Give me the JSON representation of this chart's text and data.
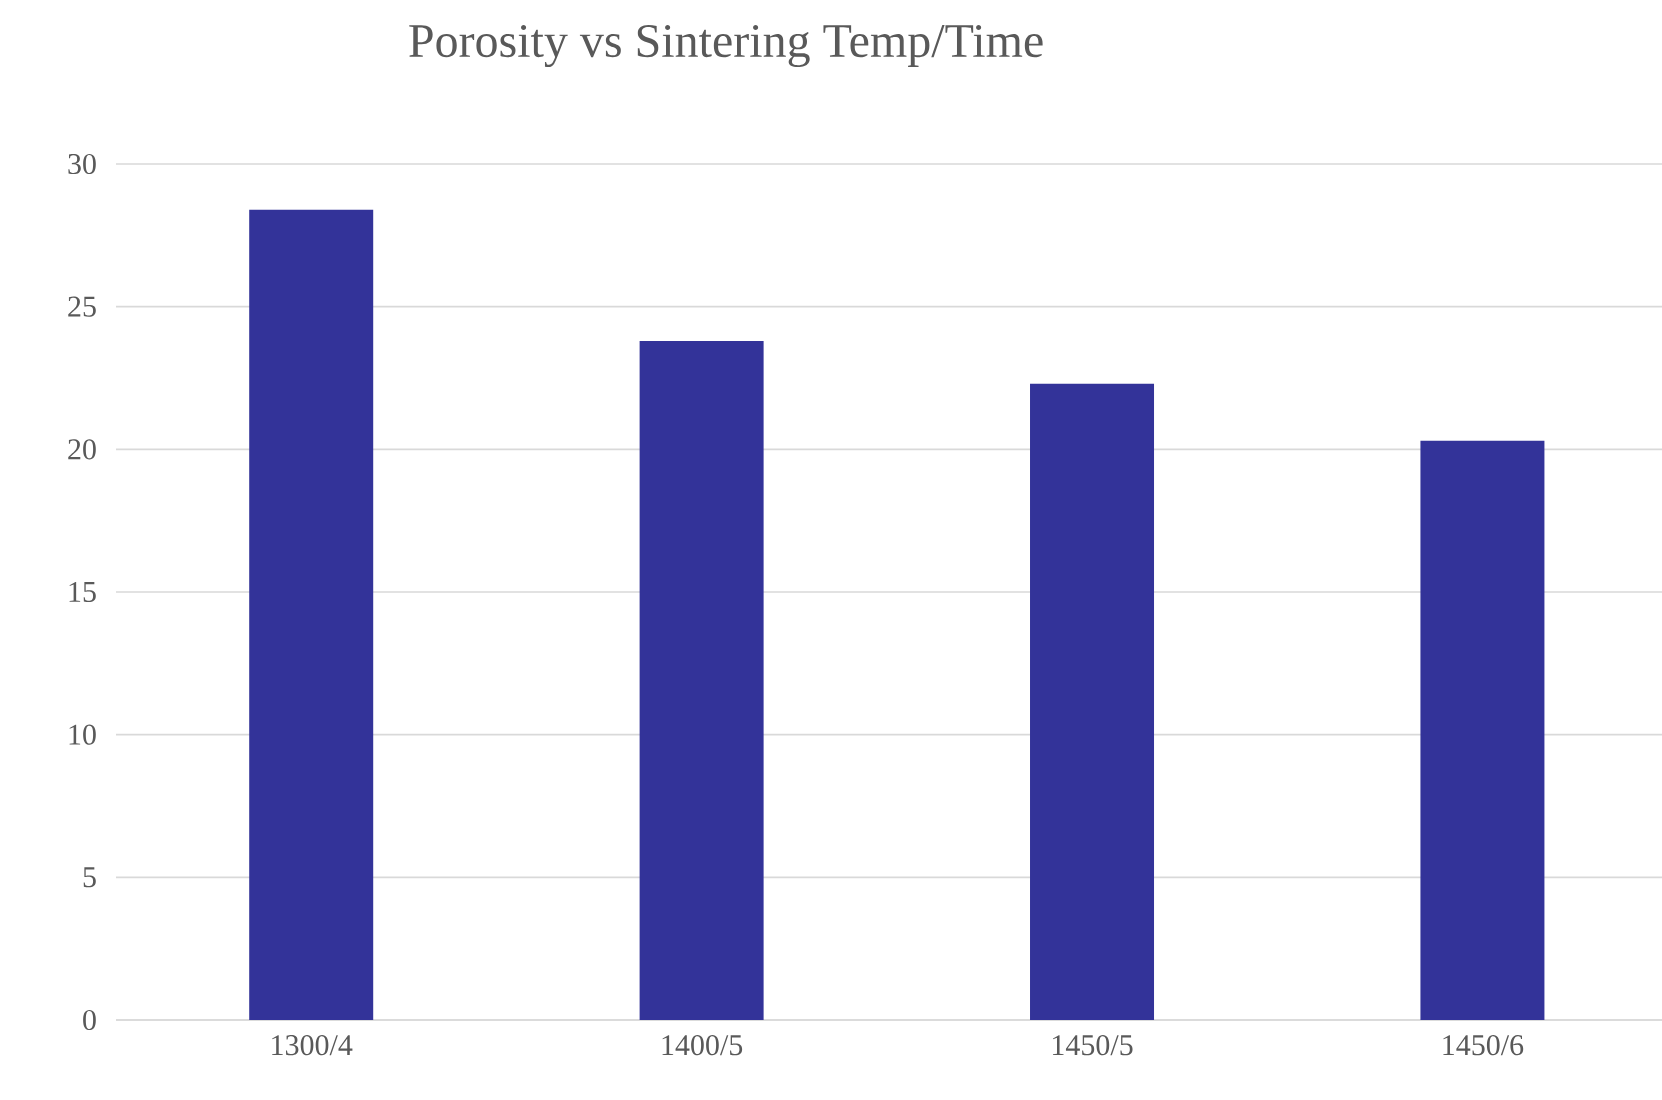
{
  "chart_data": {
    "type": "bar",
    "title": "Porosity vs Sintering Temp/Time",
    "categories": [
      "1300/4",
      "1400/5",
      "1450/5",
      "1450/6"
    ],
    "values": [
      28.4,
      23.8,
      22.3,
      20.3
    ],
    "color": "#333399",
    "ylim": [
      0,
      30
    ],
    "yticks": [
      0,
      5,
      10,
      15,
      20,
      25,
      30
    ],
    "grid": "y"
  }
}
